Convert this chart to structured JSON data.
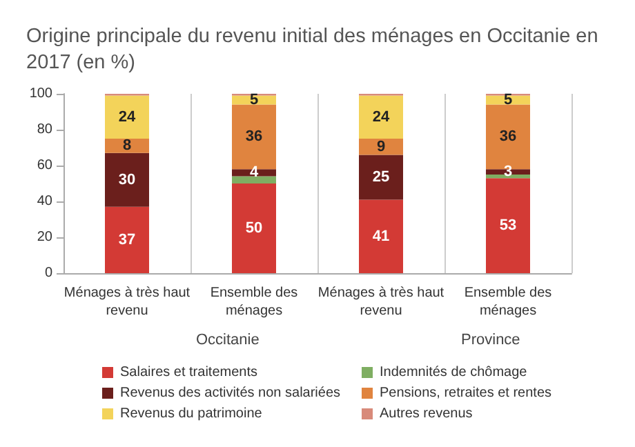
{
  "chart_data": {
    "type": "bar",
    "stacked": true,
    "title": "Origine principale du revenu initial des ménages en Occitanie en 2017 (en %)",
    "categories": [
      "Ménages à très haut\nrevenu",
      "Ensemble des\nménages",
      "Ménages à très haut\nrevenu",
      "Ensemble des\nménages"
    ],
    "annotations": [
      {
        "text": "Occitanie"
      },
      {
        "text": "Province"
      }
    ],
    "series": [
      {
        "name": "Salaires et traitements",
        "color": "#d33a35",
        "values": [
          37,
          50,
          41,
          53
        ],
        "value_labels": [
          "37",
          "50",
          "41",
          "53"
        ]
      },
      {
        "name": "Indemnités de chômage",
        "color": "#7fae62",
        "values": [
          0,
          4,
          0,
          2
        ],
        "value_labels": [
          null,
          null,
          null,
          null
        ]
      },
      {
        "name": "Revenus des activités non salariées",
        "color": "#6b1f1c",
        "values": [
          30,
          4,
          25,
          3
        ],
        "value_labels": [
          "30",
          "4",
          "25",
          "3"
        ]
      },
      {
        "name": "Pensions, retraites et rentes",
        "color": "#e0843f",
        "values": [
          8,
          36,
          9,
          36
        ],
        "value_labels": [
          "8",
          "36",
          "9",
          "36"
        ]
      },
      {
        "name": "Revenus du patrimoine",
        "color": "#f3d35a",
        "values": [
          24,
          5,
          24,
          5
        ],
        "value_labels": [
          "24",
          "5",
          "24",
          "5"
        ]
      },
      {
        "name": "Autres revenus",
        "color": "#d88a7a",
        "values": [
          1,
          1,
          1,
          1
        ],
        "value_labels": [
          null,
          null,
          null,
          null
        ]
      }
    ],
    "ylim": [
      0,
      100
    ],
    "yticks": [
      0,
      20,
      40,
      60,
      80,
      100
    ],
    "grid": "x",
    "legend": "bottom"
  }
}
